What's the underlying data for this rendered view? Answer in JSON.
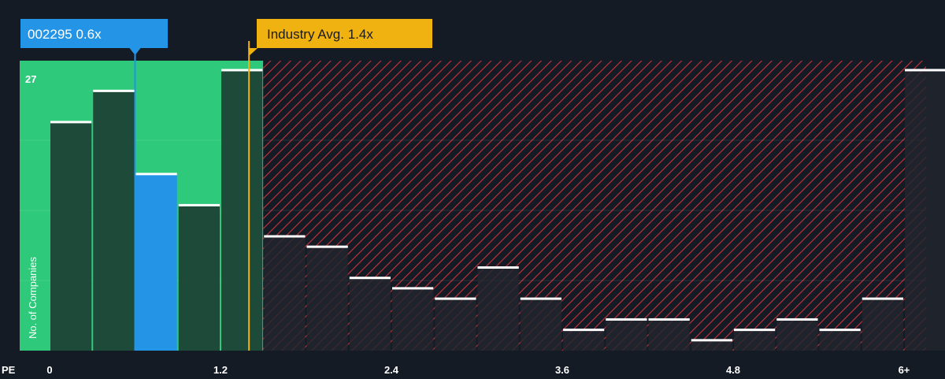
{
  "chart_data": {
    "type": "bar",
    "title": "",
    "xlabel": "PE",
    "ylabel": "No. of Companies",
    "x_tick_labels": [
      {
        "label": "0",
        "value": 0
      },
      {
        "label": "1.2",
        "value": 1.2
      },
      {
        "label": "2.4",
        "value": 2.4
      },
      {
        "label": "3.6",
        "value": 3.6
      },
      {
        "label": "4.8",
        "value": 4.8
      },
      {
        "label": "6+",
        "value": 6.0
      }
    ],
    "y_max_label": "27",
    "ylim": [
      0,
      27
    ],
    "bin_width": 0.3,
    "bins": [
      {
        "start": 0.0,
        "value": 22
      },
      {
        "start": 0.3,
        "value": 25
      },
      {
        "start": 0.6,
        "value": 17,
        "highlight": true
      },
      {
        "start": 0.9,
        "value": 14
      },
      {
        "start": 1.2,
        "value": 27
      },
      {
        "start": 1.5,
        "value": 11
      },
      {
        "start": 1.8,
        "value": 10
      },
      {
        "start": 2.1,
        "value": 7
      },
      {
        "start": 2.4,
        "value": 6
      },
      {
        "start": 2.7,
        "value": 5
      },
      {
        "start": 3.0,
        "value": 8
      },
      {
        "start": 3.3,
        "value": 5
      },
      {
        "start": 3.6,
        "value": 2
      },
      {
        "start": 3.9,
        "value": 3
      },
      {
        "start": 4.2,
        "value": 3
      },
      {
        "start": 4.5,
        "value": 1
      },
      {
        "start": 4.8,
        "value": 2
      },
      {
        "start": 5.1,
        "value": 3
      },
      {
        "start": 5.4,
        "value": 2
      },
      {
        "start": 5.7,
        "value": 5
      },
      {
        "start": 6.0,
        "value": 27
      }
    ],
    "company": {
      "label": "002295 0.6x",
      "value": 0.6
    },
    "industry": {
      "label": "Industry Avg. 1.4x",
      "value": 1.4
    },
    "colors": {
      "background": "#151b24",
      "fair_zone": "#2ec97a",
      "bar_fair": "#1e4a3a",
      "bar_over": "#22262e",
      "highlight": "#2394e6",
      "over_hatch": "#c9323c",
      "industry": "#f0b211",
      "cap": "#ffffff"
    }
  }
}
